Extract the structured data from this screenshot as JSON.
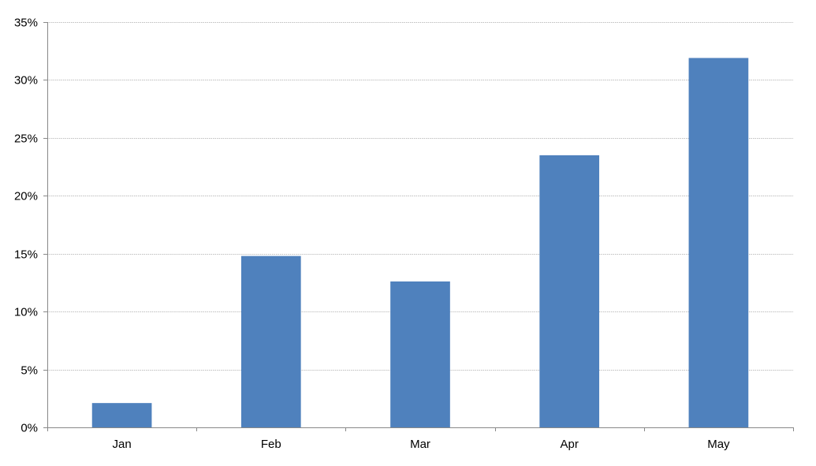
{
  "chart_data": {
    "type": "bar",
    "categories": [
      "Jan",
      "Feb",
      "Mar",
      "Apr",
      "May"
    ],
    "values": [
      2.1,
      14.8,
      12.6,
      23.5,
      31.9
    ],
    "ylim": [
      0,
      35
    ],
    "yticks": [
      0,
      5,
      10,
      15,
      20,
      25,
      30,
      35
    ],
    "ytick_labels": [
      "0%",
      "5%",
      "10%",
      "15%",
      "20%",
      "25%",
      "30%",
      "35%"
    ],
    "grid": true,
    "legend": "none",
    "colors": {
      "bar": "#4f81bd",
      "grid": "#c0c0c0",
      "axis": "#888888"
    }
  }
}
